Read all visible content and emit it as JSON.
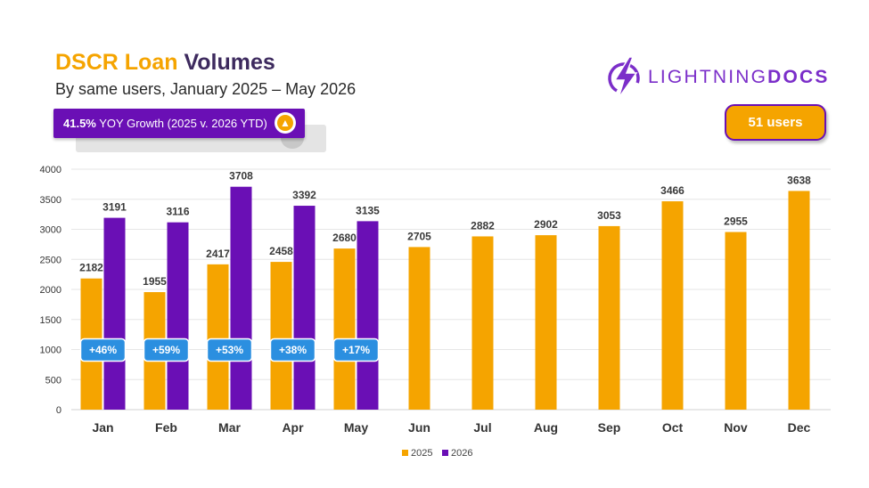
{
  "header": {
    "title_part1": "DSCR Loan",
    "title_part2": "Volumes",
    "subtitle": "By same users, January 2025 – May 2026"
  },
  "growth_badge": {
    "value": "41.5%",
    "text": "YOY Growth (2025 v. 2026 YTD)",
    "icon": "arrow-up-icon"
  },
  "logo": {
    "part1": "LIGHTNING",
    "part2": "DOCS",
    "icon": "lightning-bolt-icon"
  },
  "users_badge": {
    "label": "51 users"
  },
  "colors": {
    "2025": "#f5a400",
    "2026": "#6a0fb5",
    "pct_badge": "#2b8fe0"
  },
  "chart_data": {
    "type": "bar",
    "categories": [
      "Jan",
      "Feb",
      "Mar",
      "Apr",
      "May",
      "Jun",
      "Jul",
      "Aug",
      "Sep",
      "Oct",
      "Nov",
      "Dec"
    ],
    "series": [
      {
        "name": "2025",
        "values": [
          2182,
          1955,
          2417,
          2458,
          2680,
          2705,
          2882,
          2902,
          3053,
          3466,
          2955,
          3638
        ]
      },
      {
        "name": "2026",
        "values": [
          3191,
          3116,
          3708,
          3392,
          3135,
          null,
          null,
          null,
          null,
          null,
          null,
          null
        ]
      }
    ],
    "growth_labels": [
      "+46%",
      "+59%",
      "+53%",
      "+38%",
      "+17%"
    ],
    "ylim": [
      0,
      4000
    ],
    "yticks": [
      0,
      500,
      1000,
      1500,
      2000,
      2500,
      3000,
      3500,
      4000
    ],
    "grid": true,
    "legend": "bottom"
  }
}
